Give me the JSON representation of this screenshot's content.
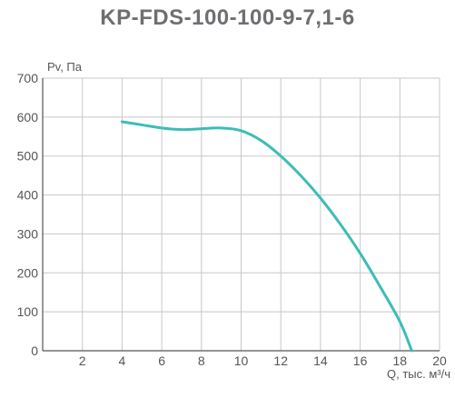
{
  "chart_data": {
    "type": "line",
    "title": "KP-FDS-100-100-9-7,1-6",
    "xlabel": "Q, тыс. м³/ч",
    "ylabel": "Pv, Па",
    "xlim": [
      0,
      20
    ],
    "ylim": [
      0,
      700
    ],
    "xticks": [
      2,
      4,
      6,
      8,
      10,
      12,
      14,
      16,
      18,
      20
    ],
    "yticks": [
      0,
      100,
      200,
      300,
      400,
      500,
      600,
      700
    ],
    "grid": true,
    "series": [
      {
        "name": "",
        "color": "#3dbdb5",
        "x": [
          4.0,
          5.0,
          6.0,
          7.0,
          8.0,
          9.0,
          10.0,
          11.0,
          12.0,
          13.0,
          14.0,
          15.0,
          16.0,
          17.0,
          18.0,
          18.6
        ],
        "y": [
          588,
          580,
          572,
          568,
          570,
          572,
          565,
          540,
          500,
          450,
          392,
          325,
          250,
          165,
          75,
          0
        ]
      }
    ]
  }
}
